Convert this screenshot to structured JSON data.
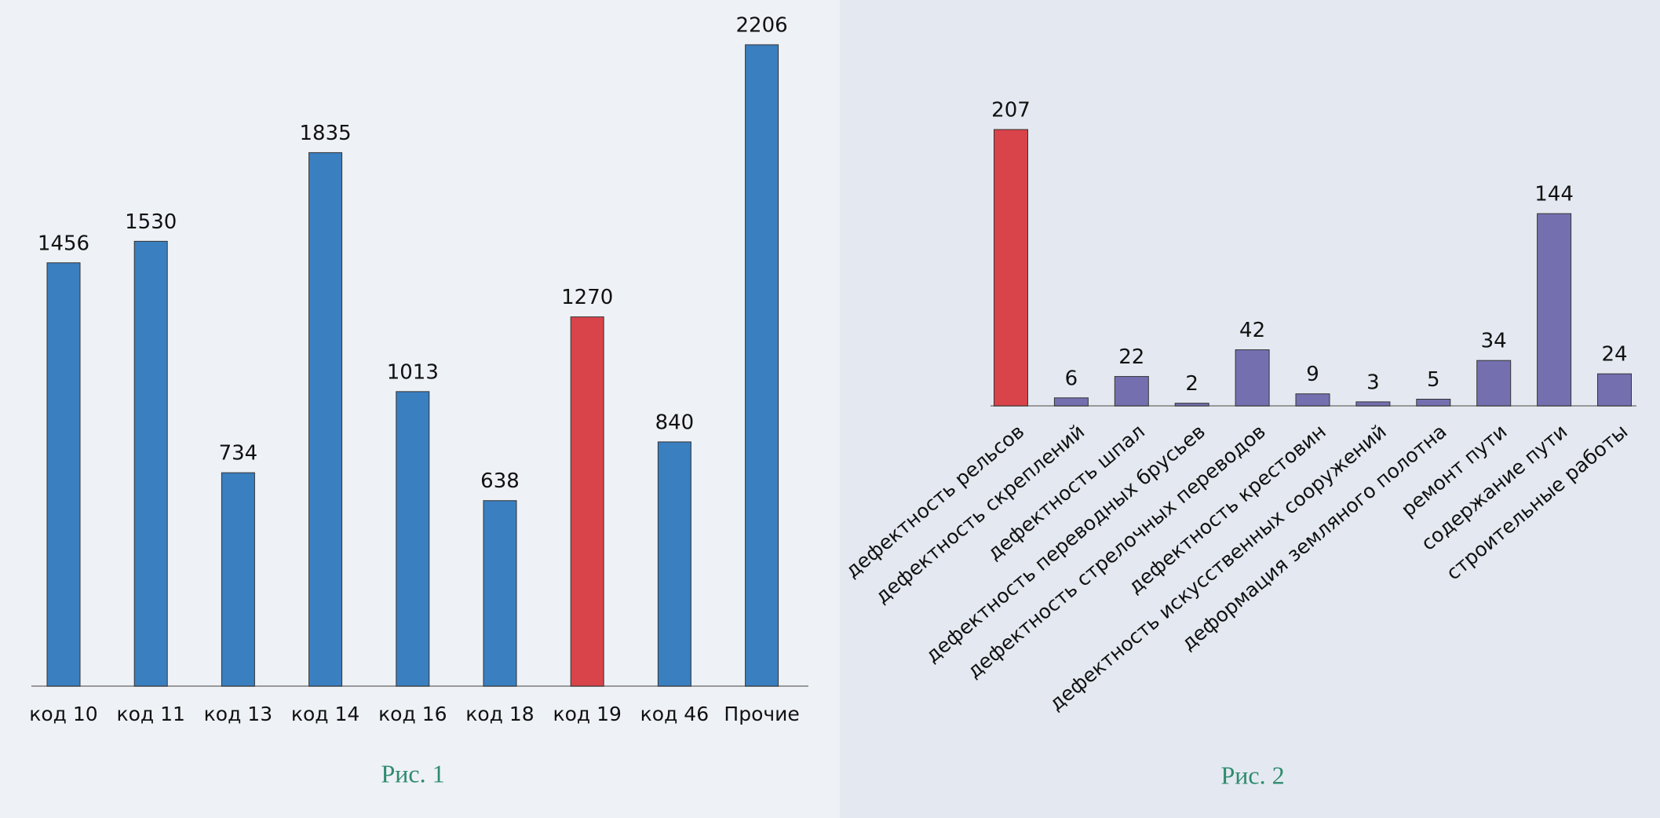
{
  "chart_data": [
    {
      "type": "bar",
      "caption": "Рис. 1",
      "categories": [
        "код 10",
        "код 11",
        "код 13",
        "код 14",
        "код 16",
        "код 18",
        "код 19",
        "код 46",
        "Прочие"
      ],
      "values": [
        1456,
        1530,
        734,
        1835,
        1013,
        638,
        1270,
        840,
        2206
      ],
      "colors": [
        "#3a7fc0",
        "#3a7fc0",
        "#3a7fc0",
        "#3a7fc0",
        "#3a7fc0",
        "#3a7fc0",
        "#d9434a",
        "#3a7fc0",
        "#3a7fc0"
      ]
    },
    {
      "type": "bar",
      "caption": "Рис. 2",
      "categories": [
        "дефектность рельсов",
        "дефектность скреплений",
        "дефектность шпал",
        "дефектность переводных брусьев",
        "дефектность стрелочных переводов",
        "дефектность крестовин",
        "дефектность искусственных сооружений",
        "деформация земляного полотна",
        "ремонт пути",
        "содержание пути",
        "строительные работы"
      ],
      "values": [
        207,
        6,
        22,
        2,
        42,
        9,
        3,
        5,
        34,
        144,
        24
      ],
      "colors": [
        "#d9434a",
        "#7470b0",
        "#7470b0",
        "#7470b0",
        "#7470b0",
        "#7470b0",
        "#7470b0",
        "#7470b0",
        "#7470b0",
        "#7470b0",
        "#7470b0"
      ]
    }
  ]
}
